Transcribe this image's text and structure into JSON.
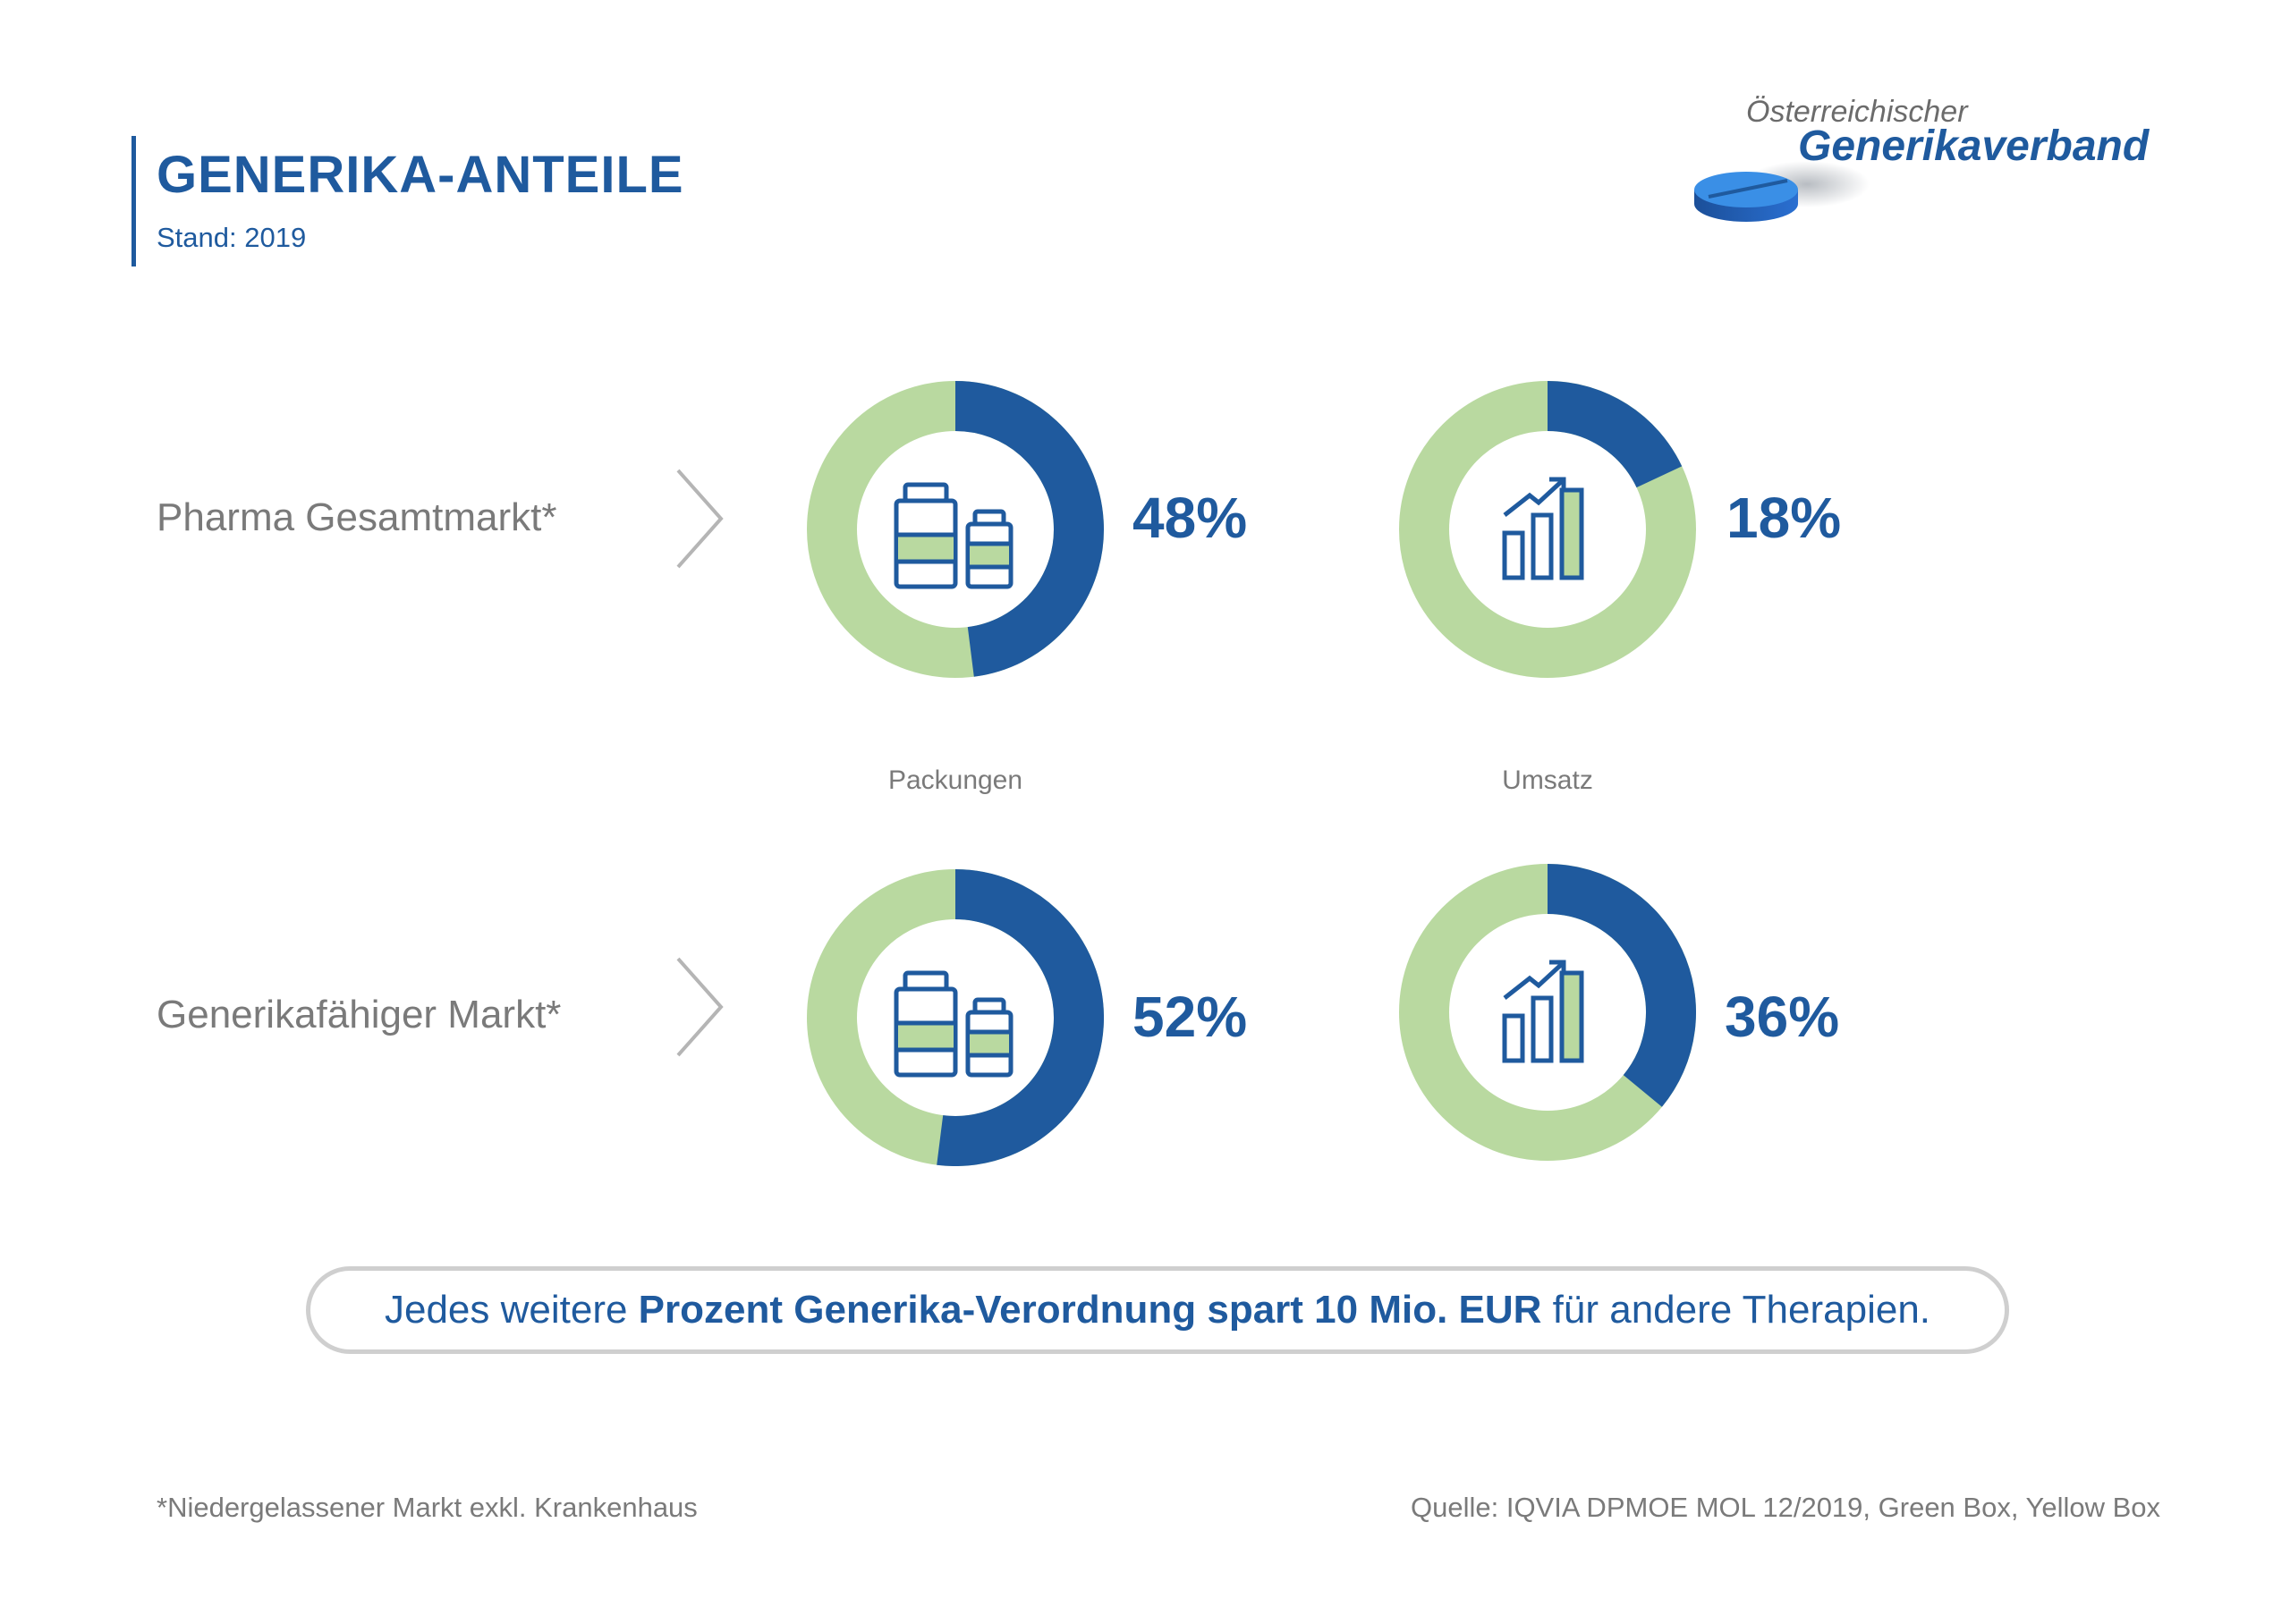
{
  "header": {
    "title": "GENERIKA-ANTEILE",
    "subtitle": "Stand: 2019"
  },
  "logo": {
    "line1": "Österreichischer",
    "line2": "Generikaverband"
  },
  "colors": {
    "accent": "#1f5a9e",
    "remainder": "#b9d9a0",
    "text_gray": "#7a7a7a"
  },
  "chart_data": {
    "type": "pie",
    "variant": "donut",
    "rows": [
      "Pharma Gesamtmarkt*",
      "Generikafähiger Markt*"
    ],
    "columns": [
      "Packungen",
      "Umsatz"
    ],
    "series": [
      {
        "row": "Pharma Gesamtmarkt*",
        "column": "Packungen",
        "value": 48,
        "label": "48%",
        "icon": "pill-bottles-icon"
      },
      {
        "row": "Pharma Gesamtmarkt*",
        "column": "Umsatz",
        "value": 18,
        "label": "18%",
        "icon": "bar-chart-growth-icon"
      },
      {
        "row": "Generikafähiger Markt*",
        "column": "Packungen",
        "value": 52,
        "label": "52%",
        "icon": "pill-bottles-icon"
      },
      {
        "row": "Generikafähiger Markt*",
        "column": "Umsatz",
        "value": 36,
        "label": "36%",
        "icon": "bar-chart-growth-icon"
      }
    ]
  },
  "banner": {
    "part1": "Jedes weitere ",
    "bold": "Prozent Generika-Verordnung spart 10 Mio. EUR",
    "part2": " für andere Therapien."
  },
  "footer": {
    "note": "*Niedergelassener Markt exkl. Krankenhaus",
    "source": "Quelle: IQVIA DPMOE MOL 12/2019, Green Box, Yellow Box"
  }
}
